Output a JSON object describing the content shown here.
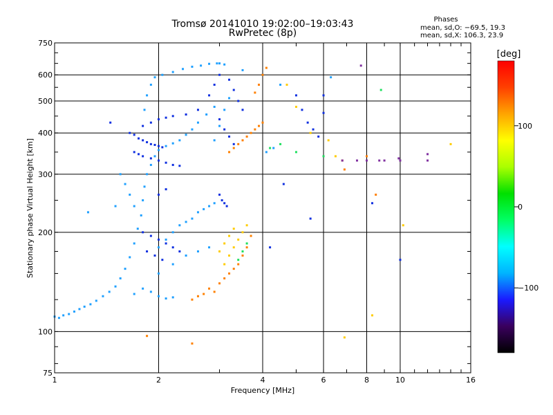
{
  "chart_data": {
    "type": "scatter",
    "title": "Tromsø 20141010 19:02:00–19:03:43",
    "subtitle": "RwPretec (8p)",
    "xlabel": "Frequency [MHz]",
    "ylabel": "Stationary phase Virtual Height [km]",
    "x_scale": "log",
    "y_scale": "log",
    "xlim": [
      1,
      16
    ],
    "ylim": [
      75,
      750
    ],
    "x_ticks": [
      1,
      2,
      4,
      6,
      8,
      10,
      16
    ],
    "x_tick_labels": [
      "1",
      "2",
      "4",
      "6",
      "8",
      "10",
      "16"
    ],
    "y_ticks": [
      75,
      100,
      200,
      300,
      400,
      500,
      600,
      750
    ],
    "y_tick_labels": [
      "75",
      "100",
      "200",
      "300",
      "400",
      "500",
      "600",
      "750"
    ],
    "grid": true,
    "x_grid": [
      2,
      4,
      6,
      8,
      10
    ],
    "y_grid": [
      100,
      200,
      300,
      400,
      500,
      600
    ],
    "phases_box": {
      "heading": "Phases",
      "line1": "mean, sd,O: −69.5, 19.3",
      "line2": "mean, sd,X: 106.3, 23.9"
    },
    "colorbar": {
      "label": "[deg]",
      "range": [
        -180,
        180
      ],
      "ticks": [
        100,
        0,
        -100
      ],
      "tick_labels": [
        "100",
        "0",
        "−100"
      ],
      "colormap": [
        "#000000",
        "#3a005e",
        "#1a1aff",
        "#00b4ff",
        "#00ffff",
        "#00ff64",
        "#00e000",
        "#aaff00",
        "#ffff00",
        "#ffa500",
        "#ff4000",
        "#ff0000"
      ]
    },
    "series": [
      {
        "color": "#1fa0ff",
        "points": [
          [
            1.0,
            111
          ],
          [
            1.03,
            110
          ],
          [
            1.06,
            112
          ],
          [
            1.1,
            113
          ],
          [
            1.14,
            115
          ],
          [
            1.18,
            117
          ],
          [
            1.22,
            119
          ],
          [
            1.27,
            121
          ],
          [
            1.32,
            124
          ],
          [
            1.38,
            128
          ],
          [
            1.44,
            132
          ],
          [
            1.5,
            137
          ],
          [
            1.55,
            145
          ],
          [
            1.6,
            155
          ],
          [
            1.65,
            168
          ],
          [
            1.7,
            185
          ],
          [
            1.74,
            205
          ],
          [
            1.78,
            225
          ],
          [
            1.8,
            250
          ],
          [
            1.82,
            275
          ],
          [
            1.85,
            300
          ],
          [
            1.9,
            320
          ],
          [
            1.95,
            340
          ],
          [
            2.0,
            355
          ],
          [
            2.1,
            365
          ],
          [
            2.2,
            372
          ],
          [
            2.3,
            380
          ],
          [
            2.4,
            395
          ],
          [
            2.5,
            410
          ],
          [
            2.6,
            430
          ],
          [
            2.75,
            455
          ],
          [
            2.9,
            480
          ],
          [
            1.82,
            470
          ],
          [
            1.85,
            520
          ],
          [
            1.9,
            560
          ],
          [
            1.95,
            590
          ],
          [
            2.05,
            600
          ],
          [
            2.2,
            612
          ],
          [
            2.35,
            625
          ],
          [
            2.5,
            635
          ],
          [
            2.65,
            640
          ],
          [
            2.8,
            648
          ],
          [
            2.95,
            650
          ],
          [
            3.1,
            645
          ],
          [
            2.9,
            380
          ],
          [
            3.0,
            420
          ],
          [
            3.1,
            470
          ],
          [
            3.2,
            510
          ],
          [
            2.0,
            180
          ],
          [
            2.1,
            190
          ],
          [
            2.2,
            200
          ],
          [
            2.3,
            210
          ],
          [
            2.4,
            215
          ],
          [
            2.5,
            220
          ],
          [
            2.6,
            230
          ],
          [
            2.7,
            235
          ],
          [
            2.8,
            240
          ],
          [
            2.9,
            245
          ],
          [
            2.0,
            150
          ],
          [
            2.2,
            160
          ],
          [
            2.4,
            170
          ],
          [
            2.6,
            175
          ],
          [
            2.8,
            180
          ],
          [
            1.7,
            130
          ],
          [
            1.8,
            135
          ],
          [
            1.9,
            132
          ],
          [
            2.0,
            128
          ],
          [
            2.1,
            126
          ],
          [
            2.2,
            127
          ],
          [
            1.25,
            230
          ],
          [
            1.5,
            240
          ],
          [
            3.0,
            650
          ],
          [
            3.5,
            620
          ],
          [
            4.0,
            600
          ],
          [
            4.5,
            560
          ],
          [
            4.1,
            350
          ],
          [
            4.3,
            360
          ],
          [
            6.3,
            590
          ],
          [
            1.55,
            300
          ],
          [
            1.6,
            280
          ],
          [
            1.65,
            260
          ],
          [
            1.7,
            240
          ]
        ]
      },
      {
        "color": "#1030e0",
        "points": [
          [
            1.65,
            400
          ],
          [
            1.7,
            395
          ],
          [
            1.75,
            385
          ],
          [
            1.8,
            380
          ],
          [
            1.85,
            375
          ],
          [
            1.9,
            370
          ],
          [
            1.95,
            368
          ],
          [
            2.0,
            365
          ],
          [
            2.05,
            362
          ],
          [
            1.7,
            350
          ],
          [
            1.75,
            345
          ],
          [
            1.8,
            340
          ],
          [
            1.9,
            335
          ],
          [
            2.0,
            330
          ],
          [
            2.1,
            325
          ],
          [
            2.2,
            320
          ],
          [
            2.3,
            318
          ],
          [
            1.8,
            420
          ],
          [
            1.9,
            430
          ],
          [
            2.0,
            440
          ],
          [
            2.1,
            445
          ],
          [
            2.2,
            450
          ],
          [
            2.4,
            455
          ],
          [
            2.6,
            470
          ],
          [
            2.8,
            520
          ],
          [
            2.9,
            560
          ],
          [
            3.0,
            600
          ],
          [
            3.2,
            580
          ],
          [
            3.3,
            540
          ],
          [
            3.4,
            500
          ],
          [
            3.5,
            470
          ],
          [
            3.0,
            440
          ],
          [
            3.1,
            410
          ],
          [
            3.2,
            390
          ],
          [
            3.3,
            370
          ],
          [
            3.0,
            260
          ],
          [
            3.05,
            250
          ],
          [
            3.1,
            245
          ],
          [
            3.15,
            240
          ],
          [
            1.8,
            200
          ],
          [
            1.9,
            195
          ],
          [
            2.0,
            190
          ],
          [
            2.1,
            185
          ],
          [
            2.2,
            180
          ],
          [
            2.3,
            175
          ],
          [
            1.85,
            175
          ],
          [
            1.95,
            170
          ],
          [
            2.05,
            165
          ],
          [
            5.0,
            520
          ],
          [
            5.2,
            470
          ],
          [
            5.4,
            430
          ],
          [
            5.6,
            410
          ],
          [
            5.8,
            390
          ],
          [
            6.0,
            520
          ],
          [
            6.0,
            460
          ],
          [
            1.45,
            430
          ],
          [
            2.0,
            260
          ],
          [
            2.1,
            270
          ],
          [
            4.6,
            280
          ],
          [
            8.3,
            245
          ],
          [
            10.0,
            165
          ],
          [
            4.2,
            180
          ],
          [
            5.5,
            220
          ]
        ]
      },
      {
        "color": "#ff8000",
        "points": [
          [
            2.5,
            125
          ],
          [
            2.6,
            128
          ],
          [
            2.7,
            130
          ],
          [
            2.8,
            135
          ],
          [
            2.9,
            132
          ],
          [
            3.0,
            140
          ],
          [
            3.1,
            145
          ],
          [
            3.2,
            150
          ],
          [
            3.3,
            155
          ],
          [
            3.4,
            160
          ],
          [
            3.5,
            170
          ],
          [
            3.6,
            180
          ],
          [
            3.7,
            195
          ],
          [
            3.2,
            350
          ],
          [
            3.3,
            360
          ],
          [
            3.4,
            370
          ],
          [
            3.5,
            380
          ],
          [
            3.6,
            390
          ],
          [
            3.7,
            400
          ],
          [
            3.8,
            410
          ],
          [
            3.9,
            420
          ],
          [
            4.0,
            430
          ],
          [
            3.8,
            530
          ],
          [
            3.9,
            560
          ],
          [
            4.0,
            600
          ],
          [
            4.1,
            630
          ],
          [
            1.85,
            97
          ],
          [
            2.5,
            92
          ],
          [
            6.8,
            330
          ],
          [
            6.9,
            310
          ],
          [
            8.5,
            260
          ],
          [
            8.0,
            340
          ]
        ]
      },
      {
        "color": "#ffcc00",
        "points": [
          [
            3.1,
            160
          ],
          [
            3.2,
            170
          ],
          [
            3.3,
            180
          ],
          [
            3.4,
            190
          ],
          [
            3.5,
            200
          ],
          [
            3.6,
            210
          ],
          [
            3.0,
            175
          ],
          [
            3.1,
            185
          ],
          [
            3.2,
            195
          ],
          [
            3.3,
            205
          ],
          [
            4.7,
            560
          ],
          [
            5.0,
            480
          ],
          [
            5.5,
            400
          ],
          [
            6.2,
            380
          ],
          [
            6.5,
            340
          ],
          [
            14.0,
            370
          ],
          [
            10.2,
            210
          ],
          [
            6.9,
            96
          ],
          [
            8.3,
            112
          ]
        ]
      },
      {
        "color": "#20e060",
        "points": [
          [
            3.4,
            165
          ],
          [
            3.5,
            175
          ],
          [
            3.6,
            185
          ],
          [
            4.2,
            360
          ],
          [
            4.5,
            370
          ],
          [
            5.0,
            350
          ],
          [
            6.0,
            340
          ],
          [
            8.8,
            540
          ]
        ]
      },
      {
        "color": "#8030a0",
        "points": [
          [
            7.5,
            330
          ],
          [
            8.0,
            330
          ],
          [
            9.0,
            330
          ],
          [
            10.0,
            330
          ],
          [
            12.0,
            330
          ],
          [
            12.0,
            345
          ],
          [
            6.8,
            330
          ],
          [
            7.7,
            640
          ],
          [
            8.7,
            330
          ],
          [
            9.9,
            335
          ]
        ]
      }
    ]
  }
}
